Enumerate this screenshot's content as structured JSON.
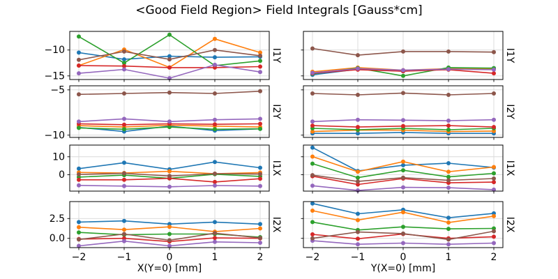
{
  "title": "<Good Field Region> Field Integrals [Gauss*cm]",
  "colors": {
    "blue": "#1f77b4",
    "orange": "#ff7f0e",
    "green": "#2ca02c",
    "red": "#d62728",
    "purple": "#9467bd",
    "brown": "#8c564b",
    "grid": "#d9d9d9",
    "spine": "#000000"
  },
  "chart_data": {
    "type": "line",
    "title": "<Good Field Region> Field Integrals [Gauss*cm]",
    "grid": true,
    "legend": "none",
    "marker": "circle",
    "x": [
      -2,
      -1,
      0,
      1,
      2
    ],
    "xlim": [
      -2.2,
      2.2
    ],
    "xtick_labels": [
      "−2",
      "−1",
      "0",
      "1",
      "2"
    ],
    "columns": [
      {
        "xlabel": "X(Y=0) [mm]"
      },
      {
        "xlabel": "Y(X=0) [mm]"
      }
    ],
    "row_labels": [
      "I1Y",
      "I2Y",
      "I1X",
      "I2X"
    ],
    "subplots": [
      {
        "row_label": "I1Y",
        "col": 0,
        "ylim": [
          -15.7,
          -6.4
        ],
        "yticks": [
          -10,
          -15
        ],
        "ytick_labels": [
          "−10",
          "−15"
        ],
        "series": [
          {
            "name": "blue",
            "color": "#1f77b4",
            "values": [
              -10.5,
              -11.8,
              -11.2,
              -11.4,
              -11.3
            ]
          },
          {
            "name": "orange",
            "color": "#ff7f0e",
            "values": [
              -13.0,
              -9.9,
              -13.35,
              -7.85,
              -10.5
            ]
          },
          {
            "name": "green",
            "color": "#2ca02c",
            "values": [
              -7.4,
              -12.5,
              -7.05,
              -13.0,
              -12.1
            ]
          },
          {
            "name": "red",
            "color": "#d62728",
            "values": [
              -13.0,
              -13.1,
              -13.4,
              -13.4,
              -13.2
            ]
          },
          {
            "name": "purple",
            "color": "#9467bd",
            "values": [
              -14.5,
              -13.75,
              -15.45,
              -12.85,
              -14.25
            ]
          },
          {
            "name": "brown",
            "color": "#8c564b",
            "values": [
              -11.9,
              -10.3,
              -11.8,
              -10.0,
              -11.1
            ]
          }
        ]
      },
      {
        "row_label": "I1Y",
        "col": 1,
        "ylim": [
          -15.7,
          -6.4
        ],
        "yticks": [
          -10,
          -15
        ],
        "ytick_labels": [
          "−10",
          "−15"
        ],
        "series": [
          {
            "name": "blue",
            "color": "#1f77b4",
            "values": [
              -14.8,
              -13.7,
              -14.1,
              -13.6,
              -13.5
            ]
          },
          {
            "name": "orange",
            "color": "#ff7f0e",
            "values": [
              -14.2,
              -13.4,
              -13.9,
              -13.6,
              -13.6
            ]
          },
          {
            "name": "green",
            "color": "#2ca02c",
            "values": [
              -14.6,
              -13.5,
              -15.0,
              -13.4,
              -13.5
            ]
          },
          {
            "name": "red",
            "color": "#d62728",
            "values": [
              -14.5,
              -13.8,
              -14.1,
              -13.8,
              -14.5
            ]
          },
          {
            "name": "purple",
            "color": "#9467bd",
            "values": [
              -14.4,
              -13.6,
              -13.9,
              -13.7,
              -13.8
            ]
          },
          {
            "name": "brown",
            "color": "#8c564b",
            "values": [
              -9.7,
              -11.0,
              -10.3,
              -10.3,
              -10.4
            ]
          }
        ]
      },
      {
        "row_label": "I2Y",
        "col": 0,
        "ylim": [
          -10.25,
          -4.55
        ],
        "yticks": [
          -5,
          -10
        ],
        "ytick_labels": [
          "−5",
          "−10"
        ],
        "series": [
          {
            "name": "blue",
            "color": "#1f77b4",
            "values": [
              -9.15,
              -9.6,
              -9.0,
              -9.5,
              -9.3
            ]
          },
          {
            "name": "orange",
            "color": "#ff7f0e",
            "values": [
              -8.95,
              -9.1,
              -8.9,
              -9.0,
              -9.1
            ]
          },
          {
            "name": "green",
            "color": "#2ca02c",
            "values": [
              -9.2,
              -9.35,
              -9.1,
              -9.35,
              -9.3
            ]
          },
          {
            "name": "red",
            "color": "#d62728",
            "values": [
              -8.75,
              -8.85,
              -8.75,
              -8.8,
              -8.75
            ]
          },
          {
            "name": "purple",
            "color": "#9467bd",
            "values": [
              -8.5,
              -8.2,
              -8.5,
              -8.3,
              -8.2
            ]
          },
          {
            "name": "brown",
            "color": "#8c564b",
            "values": [
              -5.5,
              -5.4,
              -5.3,
              -5.4,
              -5.15
            ]
          }
        ]
      },
      {
        "row_label": "I2Y",
        "col": 1,
        "ylim": [
          -10.25,
          -4.55
        ],
        "yticks": [
          -5,
          -10
        ],
        "ytick_labels": [
          "−5",
          "−10"
        ],
        "series": [
          {
            "name": "blue",
            "color": "#1f77b4",
            "values": [
              -9.8,
              -9.8,
              -9.7,
              -9.8,
              -9.8
            ]
          },
          {
            "name": "orange",
            "color": "#ff7f0e",
            "values": [
              -9.6,
              -9.45,
              -9.45,
              -9.6,
              -9.55
            ]
          },
          {
            "name": "green",
            "color": "#2ca02c",
            "values": [
              -9.25,
              -9.4,
              -9.25,
              -9.4,
              -9.25
            ]
          },
          {
            "name": "red",
            "color": "#d62728",
            "values": [
              -8.95,
              -9.1,
              -9.0,
              -8.95,
              -9.1
            ]
          },
          {
            "name": "purple",
            "color": "#9467bd",
            "values": [
              -8.5,
              -8.3,
              -8.35,
              -8.4,
              -8.3
            ]
          },
          {
            "name": "brown",
            "color": "#8c564b",
            "values": [
              -5.4,
              -5.55,
              -5.35,
              -5.55,
              -5.4
            ]
          }
        ]
      },
      {
        "row_label": "I1X",
        "col": 0,
        "ylim": [
          -9.1,
          16.5
        ],
        "yticks": [
          10,
          0
        ],
        "ytick_labels": [
          "10",
          "0"
        ],
        "series": [
          {
            "name": "blue",
            "color": "#1f77b4",
            "values": [
              3.4,
              6.7,
              3.0,
              7.1,
              3.9
            ]
          },
          {
            "name": "orange",
            "color": "#ff7f0e",
            "values": [
              1.3,
              1.0,
              1.9,
              0.6,
              1.2
            ]
          },
          {
            "name": "green",
            "color": "#2ca02c",
            "values": [
              -1.3,
              -0.2,
              -2.0,
              0.3,
              -0.9
            ]
          },
          {
            "name": "red",
            "color": "#d62728",
            "values": [
              -2.8,
              -2.8,
              -2.0,
              -4.0,
              -2.2
            ]
          },
          {
            "name": "purple",
            "color": "#9467bd",
            "values": [
              -5.9,
              -6.3,
              -6.7,
              -6.0,
              -6.3
            ]
          },
          {
            "name": "brown",
            "color": "#8c564b",
            "values": [
              0.2,
              0.8,
              -0.7,
              0.6,
              0.4
            ]
          }
        ]
      },
      {
        "row_label": "I1X",
        "col": 1,
        "ylim": [
          -9.1,
          16.5
        ],
        "yticks": [
          10,
          0
        ],
        "ytick_labels": [
          "10",
          "0"
        ],
        "series": [
          {
            "name": "blue",
            "color": "#1f77b4",
            "values": [
              15.1,
              2.1,
              5.3,
              6.4,
              4.0
            ]
          },
          {
            "name": "orange",
            "color": "#ff7f0e",
            "values": [
              10.1,
              1.7,
              7.3,
              1.7,
              4.3
            ]
          },
          {
            "name": "green",
            "color": "#2ca02c",
            "values": [
              6.2,
              -1.6,
              2.5,
              -1.2,
              0.8
            ]
          },
          {
            "name": "red",
            "color": "#d62728",
            "values": [
              -0.8,
              -5.4,
              -2.1,
              -4.5,
              -4.1
            ]
          },
          {
            "name": "purple",
            "color": "#9467bd",
            "values": [
              -6.1,
              -8.7,
              -7.0,
              -7.2,
              -8.3
            ]
          },
          {
            "name": "brown",
            "color": "#8c564b",
            "values": [
              -0.2,
              -3.7,
              -1.6,
              -3.1,
              -2.1
            ]
          }
        ]
      },
      {
        "row_label": "I2X",
        "col": 0,
        "ylim": [
          -1.17,
          4.64
        ],
        "yticks": [
          2.5,
          0.0
        ],
        "ytick_labels": [
          "2.5",
          "0.0"
        ],
        "series": [
          {
            "name": "blue",
            "color": "#1f77b4",
            "values": [
              2.05,
              2.2,
              1.8,
              2.05,
              1.8
            ]
          },
          {
            "name": "orange",
            "color": "#ff7f0e",
            "values": [
              1.4,
              1.1,
              1.45,
              0.85,
              1.25
            ]
          },
          {
            "name": "green",
            "color": "#2ca02c",
            "values": [
              0.75,
              0.45,
              0.55,
              0.55,
              0.15
            ]
          },
          {
            "name": "red",
            "color": "#d62728",
            "values": [
              -0.1,
              0.0,
              -0.4,
              0.05,
              0.0
            ]
          },
          {
            "name": "purple",
            "color": "#9467bd",
            "values": [
              -0.95,
              -0.35,
              -0.95,
              -0.45,
              -0.55
            ]
          },
          {
            "name": "brown",
            "color": "#8c564b",
            "values": [
              -0.15,
              0.55,
              -0.25,
              0.65,
              0.05
            ]
          }
        ]
      },
      {
        "row_label": "I2X",
        "col": 1,
        "ylim": [
          -1.17,
          4.64
        ],
        "yticks": [
          2.5,
          0.0
        ],
        "ytick_labels": [
          "2.5",
          "0.0"
        ],
        "series": [
          {
            "name": "blue",
            "color": "#1f77b4",
            "values": [
              4.4,
              3.1,
              3.6,
              2.6,
              3.15
            ]
          },
          {
            "name": "orange",
            "color": "#ff7f0e",
            "values": [
              3.5,
              2.3,
              3.3,
              2.0,
              2.8
            ]
          },
          {
            "name": "green",
            "color": "#2ca02c",
            "values": [
              2.05,
              1.05,
              1.45,
              1.2,
              1.25
            ]
          },
          {
            "name": "red",
            "color": "#d62728",
            "values": [
              0.5,
              -0.05,
              0.55,
              0.0,
              0.2
            ]
          },
          {
            "name": "purple",
            "color": "#9467bd",
            "values": [
              -0.3,
              -0.75,
              -0.6,
              -0.75,
              -0.6
            ]
          },
          {
            "name": "brown",
            "color": "#8c564b",
            "values": [
              0.0,
              0.8,
              0.6,
              -0.15,
              0.9
            ]
          }
        ]
      }
    ]
  }
}
